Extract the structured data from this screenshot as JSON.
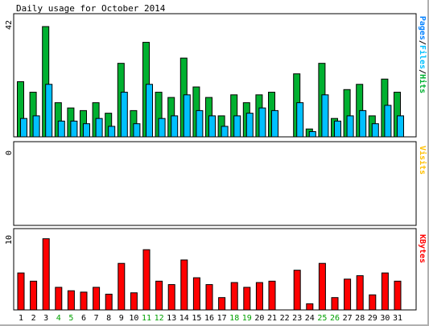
{
  "colors": {
    "hits": "#00b030",
    "files": "#00c0ff",
    "pages": "#0080ff",
    "visits": "#ffc000",
    "kbytes": "#ff0000",
    "weekday": "#000000",
    "weekend": "#00a000"
  },
  "chart_data": [
    {
      "type": "bar",
      "title": "Daily usage for October 2014",
      "ylabel_max": "42",
      "ylim": [
        0,
        42
      ],
      "side_label": [
        "Pages",
        "Files",
        "Hits"
      ],
      "categories": [
        "1",
        "2",
        "3",
        "4",
        "5",
        "6",
        "7",
        "8",
        "9",
        "10",
        "11",
        "12",
        "13",
        "14",
        "15",
        "16",
        "17",
        "18",
        "19",
        "20",
        "21",
        "22",
        "23",
        "24",
        "25",
        "26",
        "27",
        "28",
        "29",
        "30",
        "31"
      ],
      "weekend_days": [
        "4",
        "5",
        "11",
        "12",
        "18",
        "19",
        "25",
        "26"
      ],
      "series": [
        {
          "name": "Hits",
          "values": [
            21,
            17,
            42,
            13,
            11,
            10,
            13,
            9,
            28,
            10,
            36,
            17,
            15,
            30,
            19,
            15,
            8,
            16,
            13,
            16,
            17,
            0,
            24,
            3,
            28,
            7,
            18,
            20,
            8,
            22,
            17
          ]
        },
        {
          "name": "Files",
          "values": [
            7,
            8,
            20,
            6,
            6,
            5,
            7,
            4,
            17,
            5,
            20,
            7,
            8,
            16,
            10,
            8,
            4,
            8,
            9,
            11,
            10,
            0,
            13,
            2,
            16,
            6,
            8,
            10,
            5,
            12,
            8
          ]
        },
        {
          "name": "Pages",
          "values": [
            0,
            0,
            0,
            0,
            0,
            0,
            0,
            0,
            0,
            0,
            0,
            0,
            0,
            0,
            0,
            0,
            0,
            0,
            0,
            0,
            0,
            0,
            0,
            0,
            0,
            0,
            0,
            0,
            0,
            0,
            0
          ]
        }
      ]
    },
    {
      "type": "bar",
      "ylabel_max": "0",
      "ylim": [
        0,
        1
      ],
      "side_label": [
        "Visits"
      ],
      "series": [
        {
          "name": "Visits",
          "values": [
            0,
            0,
            0,
            0,
            0,
            0,
            0,
            0,
            0,
            0,
            0,
            0,
            0,
            0,
            0,
            0,
            0,
            0,
            0,
            0,
            0,
            0,
            0,
            0,
            0,
            0,
            0,
            0,
            0,
            0,
            0
          ]
        }
      ]
    },
    {
      "type": "bar",
      "ylabel_max": "10",
      "ylim": [
        0,
        10
      ],
      "side_label": [
        "KBytes"
      ],
      "series": [
        {
          "name": "KBytes",
          "values": [
            5.4,
            4.2,
            10.4,
            3.3,
            2.8,
            2.6,
            3.3,
            2.3,
            6.8,
            2.5,
            8.8,
            4.2,
            3.7,
            7.3,
            4.7,
            3.7,
            1.8,
            4.0,
            3.3,
            4.0,
            4.2,
            0,
            5.8,
            0.9,
            6.8,
            1.8,
            4.5,
            5.0,
            2.2,
            5.4,
            4.2
          ]
        }
      ]
    }
  ]
}
